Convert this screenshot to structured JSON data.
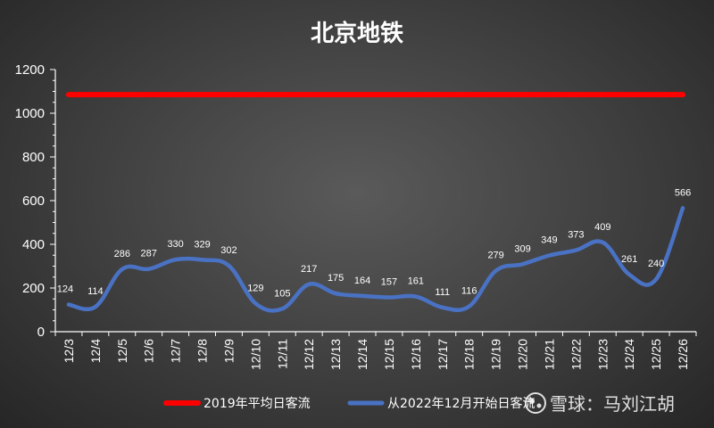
{
  "chart_data": {
    "type": "line",
    "title": "北京地铁",
    "categories": [
      "12/3",
      "12/4",
      "12/5",
      "12/6",
      "12/7",
      "12/8",
      "12/9",
      "12/10",
      "12/11",
      "12/12",
      "12/13",
      "12/14",
      "12/15",
      "12/16",
      "12/17",
      "12/18",
      "12/19",
      "12/20",
      "12/21",
      "12/22",
      "12/23",
      "12/24",
      "12/25",
      "12/26"
    ],
    "ylim": [
      0,
      1200
    ],
    "yticks": [
      0,
      200,
      400,
      600,
      800,
      1000,
      1200
    ],
    "grid": false,
    "legend_position": "bottom",
    "series": [
      {
        "name": "2019年平均日客流",
        "color": "#ff0000",
        "values": [
          1085,
          1085,
          1085,
          1085,
          1085,
          1085,
          1085,
          1085,
          1085,
          1085,
          1085,
          1085,
          1085,
          1085,
          1085,
          1085,
          1085,
          1085,
          1085,
          1085,
          1085,
          1085,
          1085,
          1085
        ]
      },
      {
        "name": "从2022年12月开始日客流",
        "color": "#4a72c4",
        "values": [
          124,
          114,
          286,
          287,
          330,
          329,
          302,
          129,
          105,
          217,
          175,
          164,
          157,
          161,
          111,
          116,
          279,
          309,
          349,
          373,
          409,
          261,
          240,
          566
        ],
        "data_labels": true
      }
    ]
  },
  "watermark": {
    "icon": "snowball-logo-icon",
    "text": "雪球：马刘江胡"
  }
}
